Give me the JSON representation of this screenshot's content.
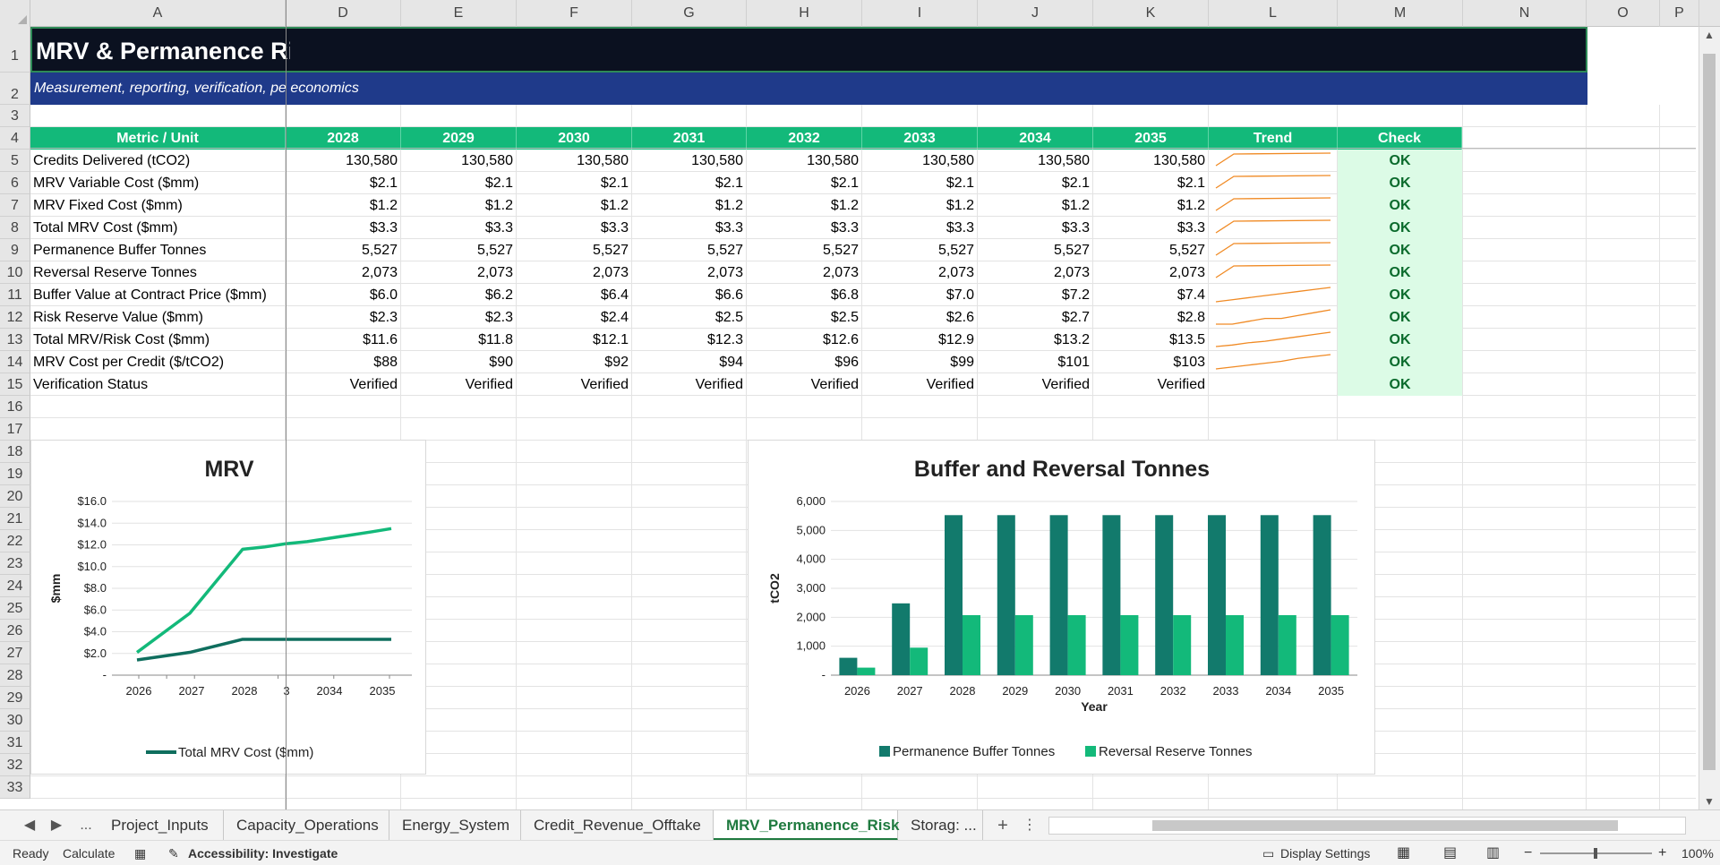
{
  "columns": [
    "A",
    "D",
    "E",
    "F",
    "G",
    "H",
    "I",
    "J",
    "K",
    "L",
    "M",
    "N",
    "O",
    "P"
  ],
  "rows": [
    "1",
    "2",
    "3",
    "4",
    "5",
    "6",
    "7",
    "8",
    "9",
    "10",
    "11",
    "12",
    "13",
    "14",
    "15",
    "16",
    "17",
    "18",
    "19",
    "20",
    "21",
    "22",
    "23",
    "24",
    "25",
    "26",
    "27",
    "28",
    "29",
    "30",
    "31",
    "32",
    "33"
  ],
  "sheet": {
    "title": "MRV & Permanence Ri",
    "subtitle": "Measurement, reporting, verification, pe economics",
    "header": [
      "Metric / Unit",
      "2028",
      "2029",
      "2030",
      "2031",
      "2032",
      "2033",
      "2034",
      "2035",
      "Trend",
      "Check"
    ],
    "table": [
      {
        "label": "Credits Delivered (tCO2)",
        "values": [
          "130,580",
          "130,580",
          "130,580",
          "130,580",
          "130,580",
          "130,580",
          "130,580",
          "130,580"
        ],
        "check": "OK"
      },
      {
        "label": "MRV Variable Cost ($mm)",
        "values": [
          "$2.1",
          "$2.1",
          "$2.1",
          "$2.1",
          "$2.1",
          "$2.1",
          "$2.1",
          "$2.1"
        ],
        "check": "OK"
      },
      {
        "label": "MRV Fixed Cost ($mm)",
        "values": [
          "$1.2",
          "$1.2",
          "$1.2",
          "$1.2",
          "$1.2",
          "$1.2",
          "$1.2",
          "$1.2"
        ],
        "check": "OK"
      },
      {
        "label": "Total MRV Cost ($mm)",
        "values": [
          "$3.3",
          "$3.3",
          "$3.3",
          "$3.3",
          "$3.3",
          "$3.3",
          "$3.3",
          "$3.3"
        ],
        "check": "OK"
      },
      {
        "label": "Permanence Buffer Tonnes",
        "values": [
          "5,527",
          "5,527",
          "5,527",
          "5,527",
          "5,527",
          "5,527",
          "5,527",
          "5,527"
        ],
        "check": "OK"
      },
      {
        "label": "Reversal Reserve Tonnes",
        "values": [
          "2,073",
          "2,073",
          "2,073",
          "2,073",
          "2,073",
          "2,073",
          "2,073",
          "2,073"
        ],
        "check": "OK"
      },
      {
        "label": "Buffer Value at Contract Price ($mm)",
        "values": [
          "$6.0",
          "$6.2",
          "$6.4",
          "$6.6",
          "$6.8",
          "$7.0",
          "$7.2",
          "$7.4"
        ],
        "check": "OK"
      },
      {
        "label": "Risk Reserve Value ($mm)",
        "values": [
          "$2.3",
          "$2.3",
          "$2.4",
          "$2.5",
          "$2.5",
          "$2.6",
          "$2.7",
          "$2.8"
        ],
        "check": "OK"
      },
      {
        "label": "Total MRV/Risk Cost ($mm)",
        "values": [
          "$11.6",
          "$11.8",
          "$12.1",
          "$12.3",
          "$12.6",
          "$12.9",
          "$13.2",
          "$13.5"
        ],
        "check": "OK"
      },
      {
        "label": "MRV Cost per Credit ($/tCO2)",
        "values": [
          "$88",
          "$90",
          "$92",
          "$94",
          "$96",
          "$99",
          "$101",
          "$103"
        ],
        "check": "OK"
      },
      {
        "label": "Verification Status",
        "values": [
          "Verified",
          "Verified",
          "Verified",
          "Verified",
          "Verified",
          "Verified",
          "Verified",
          "Verified"
        ],
        "check": "OK"
      }
    ],
    "sparkline_color": "#f08a24"
  },
  "chart_data": [
    {
      "type": "line",
      "title": "MRV",
      "ylabel": "$mm",
      "xlabel": "",
      "x": [
        "2026",
        "2027",
        "2028",
        "2029",
        "2030",
        "2031",
        "2032",
        "2033",
        "2034",
        "2035"
      ],
      "x_tick_labels": [
        "2026",
        "2027",
        "2028",
        "3",
        "2034",
        "2035"
      ],
      "y_tick_labels": [
        "-",
        "$2.0",
        "$4.0",
        "$6.0",
        "$8.0",
        "$10.0",
        "$12.0",
        "$14.0",
        "$16.0"
      ],
      "ylim": [
        0,
        16
      ],
      "series": [
        {
          "name": "",
          "color": "#13b97a",
          "values": [
            2.1,
            5.7,
            11.6,
            11.8,
            12.1,
            12.3,
            12.6,
            12.9,
            13.2,
            13.5
          ]
        },
        {
          "name": "Total MRV Cost ($mm)",
          "color": "#0f6e5e",
          "values": [
            1.4,
            2.1,
            3.3,
            3.3,
            3.3,
            3.3,
            3.3,
            3.3,
            3.3,
            3.3
          ]
        }
      ],
      "legend": "bottom",
      "legend_label": "Total MRV Cost ($mm)"
    },
    {
      "type": "bar",
      "title": "Buffer and Reversal Tonnes",
      "xlabel": "Year",
      "ylabel": "tCO2",
      "categories": [
        "2026",
        "2027",
        "2028",
        "2029",
        "2030",
        "2031",
        "2032",
        "2033",
        "2034",
        "2035"
      ],
      "y_tick_labels": [
        "-",
        "1,000",
        "2,000",
        "3,000",
        "4,000",
        "5,000",
        "6,000"
      ],
      "ylim": [
        0,
        6000
      ],
      "series": [
        {
          "name": "Permanence Buffer Tonnes",
          "color": "#127a6c",
          "values": [
            600,
            2480,
            5527,
            5527,
            5527,
            5527,
            5527,
            5527,
            5527,
            5527
          ]
        },
        {
          "name": "Reversal Reserve Tonnes",
          "color": "#13b97a",
          "values": [
            260,
            950,
            2073,
            2073,
            2073,
            2073,
            2073,
            2073,
            2073,
            2073
          ]
        }
      ],
      "legend": "bottom"
    }
  ],
  "tabs": {
    "nav_prev": "◀",
    "nav_next": "▶",
    "nav_more": "...",
    "items": [
      "Project_Inputs",
      "Capacity_Operations",
      "Energy_System",
      "Credit_Revenue_Offtake",
      "MRV_Permanence_Risk",
      "Storag: ..."
    ],
    "active": "MRV_Permanence_Risk",
    "add": "+"
  },
  "status": {
    "ready": "Ready",
    "calculate": "Calculate",
    "accessibility": "Accessibility: Investigate",
    "display_settings": "Display Settings",
    "zoom_minus": "−",
    "zoom_plus": "+",
    "zoom": "100%"
  }
}
